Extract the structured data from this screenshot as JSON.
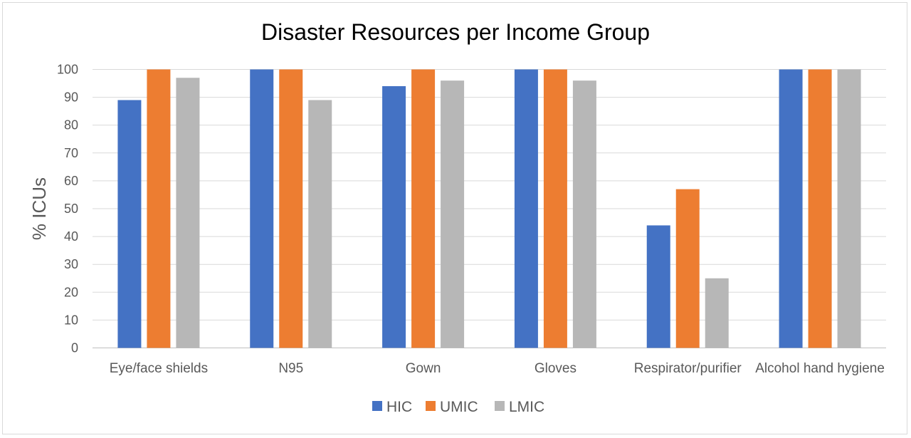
{
  "chart_data": {
    "type": "bar",
    "title": "Disaster Resources per Income Group",
    "xlabel": "",
    "ylabel": "% ICUs",
    "ylim": [
      0,
      100
    ],
    "yticks": [
      0,
      10,
      20,
      30,
      40,
      50,
      60,
      70,
      80,
      90,
      100
    ],
    "grid": true,
    "legend_position": "bottom",
    "categories": [
      "Eye/face shields",
      "N95",
      "Gown",
      "Gloves",
      "Respirator/purifier",
      "Alcohol hand hygiene"
    ],
    "series": [
      {
        "name": "HIC",
        "color": "#4472c4",
        "values": [
          89,
          100,
          94,
          100,
          44,
          100
        ]
      },
      {
        "name": "UMIC",
        "color": "#ed7d31",
        "values": [
          100,
          100,
          100,
          100,
          57,
          100
        ]
      },
      {
        "name": "LMIC",
        "color": "#b7b7b7",
        "values": [
          97,
          89,
          96,
          96,
          25,
          100
        ]
      }
    ]
  }
}
